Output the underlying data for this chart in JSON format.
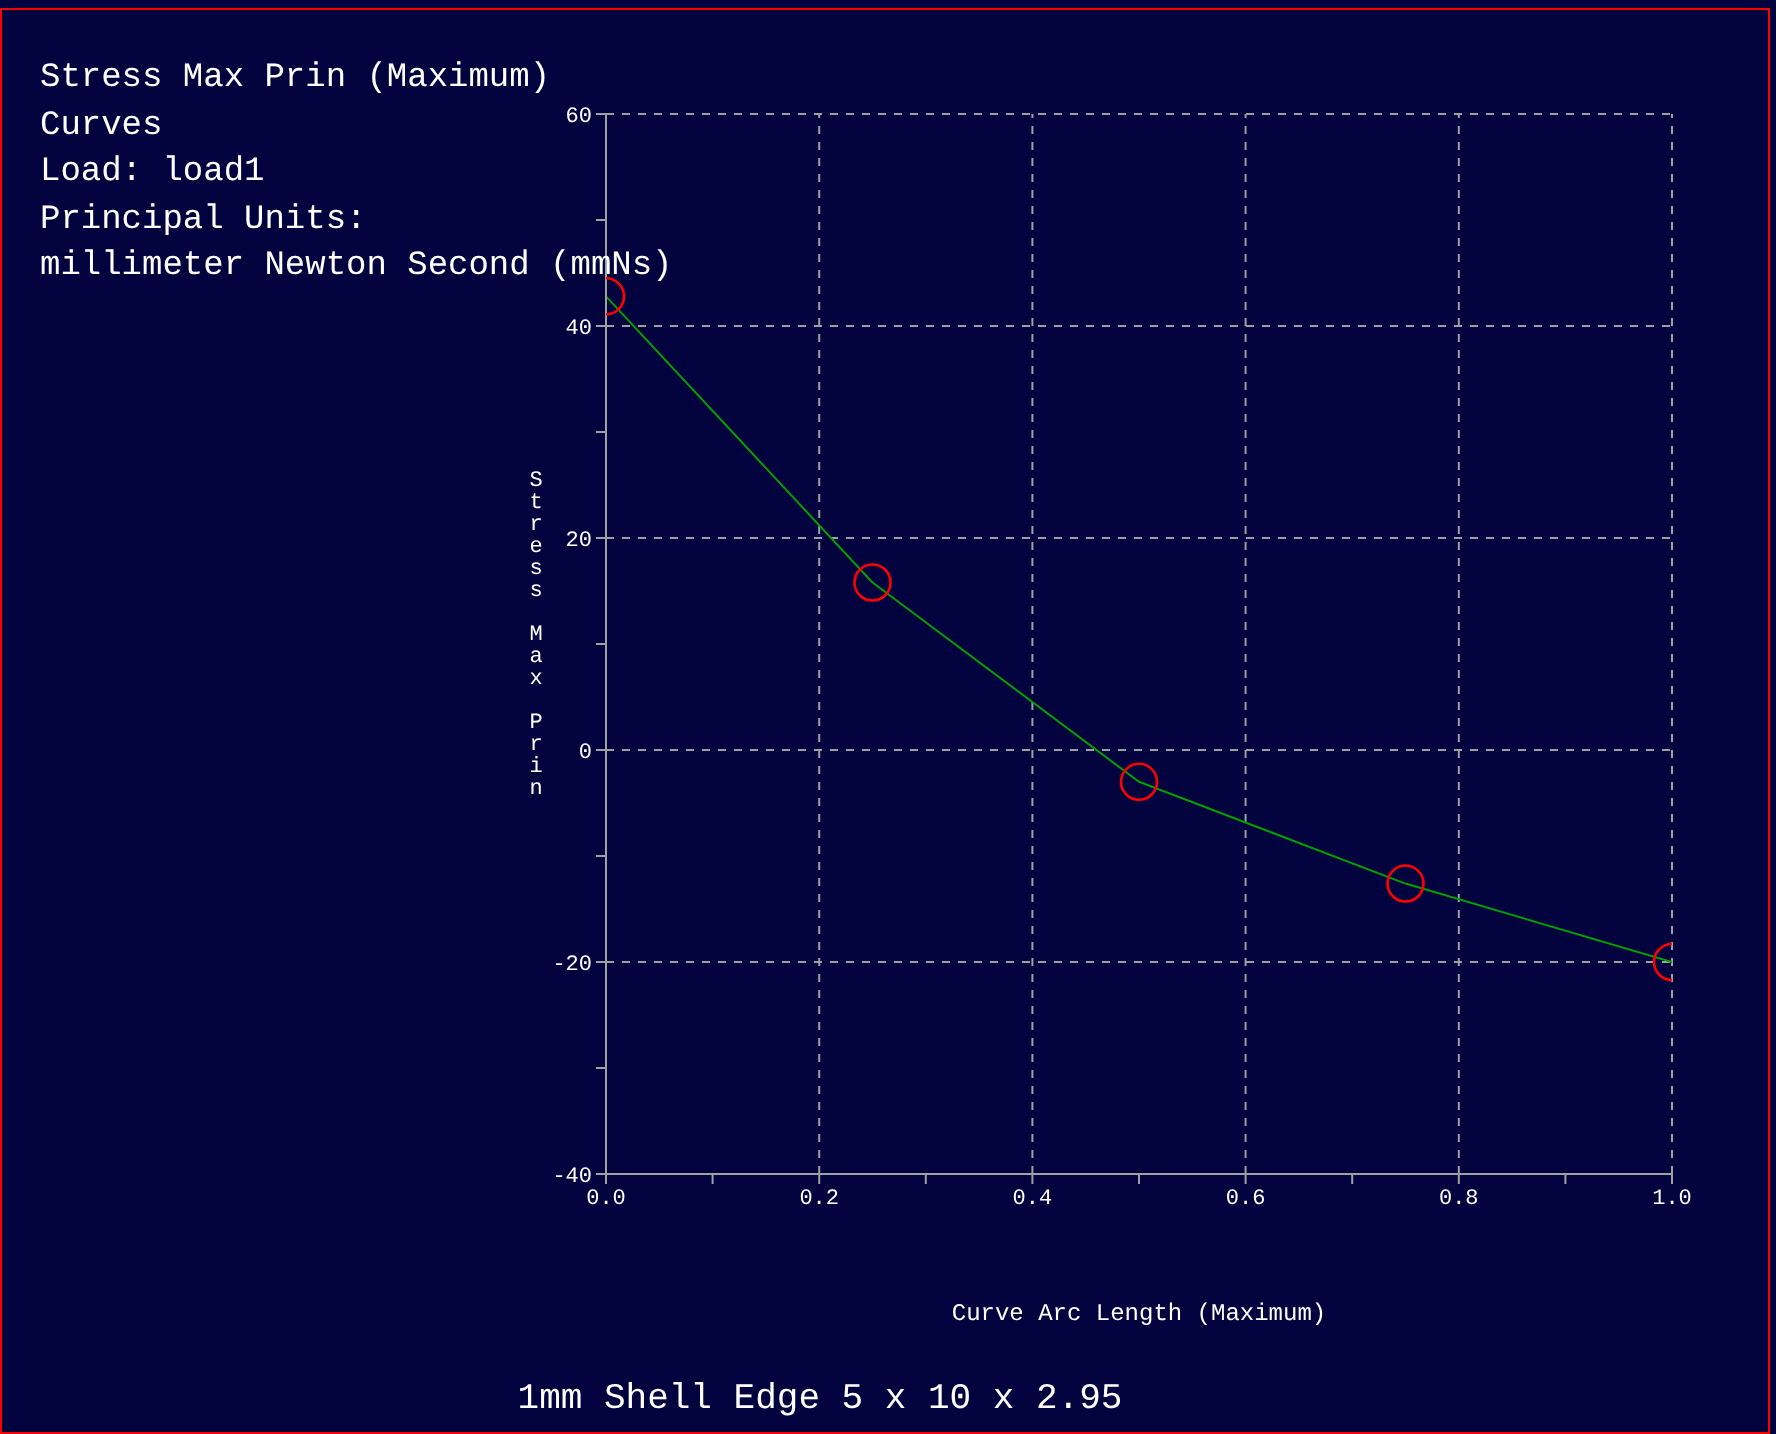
{
  "chart_data": {
    "type": "line",
    "title": "Stress Max Prin (Maximum)",
    "subtitle": "Curves",
    "annotations": [
      "Load: load1",
      "Principal Units:",
      "millimeter Newton Second (mmNs)",
      "1mm Shell Edge 5 x 10 x 2.95"
    ],
    "xlabel": "Curve Arc Length (Maximum)",
    "ylabel": "Stress Max Prin",
    "x": [
      0,
      0.25,
      0.5,
      0.75,
      1
    ],
    "series": [
      {
        "color": "#00a000",
        "values": [
          42.8,
          15.8,
          -3.0,
          -12.6,
          -20.0
        ]
      }
    ],
    "xlim": [
      0,
      1
    ],
    "ylim": [
      -40,
      60
    ],
    "xticks": [
      {
        "value": 0,
        "label": "0.0"
      },
      {
        "value": 0.1,
        "label": null
      },
      {
        "value": 0.2,
        "label": "0.2"
      },
      {
        "value": 0.3,
        "label": null
      },
      {
        "value": 0.4,
        "label": "0.4"
      },
      {
        "value": 0.5,
        "label": null
      },
      {
        "value": 0.6,
        "label": "0.6"
      },
      {
        "value": 0.7,
        "label": null
      },
      {
        "value": 0.8,
        "label": "0.8"
      },
      {
        "value": 0.9,
        "label": null
      },
      {
        "value": 1,
        "label": "1.0"
      }
    ],
    "yticks": [
      -40,
      {
        "value": -30,
        "label": null
      },
      -20,
      {
        "value": -10,
        "label": null
      },
      0,
      {
        "value": 10,
        "label": null
      },
      20,
      {
        "value": 30,
        "label": null
      },
      40,
      {
        "value": 50,
        "label": null
      },
      60
    ],
    "grid": true,
    "marker": "circle",
    "line_style": "solid"
  }
}
